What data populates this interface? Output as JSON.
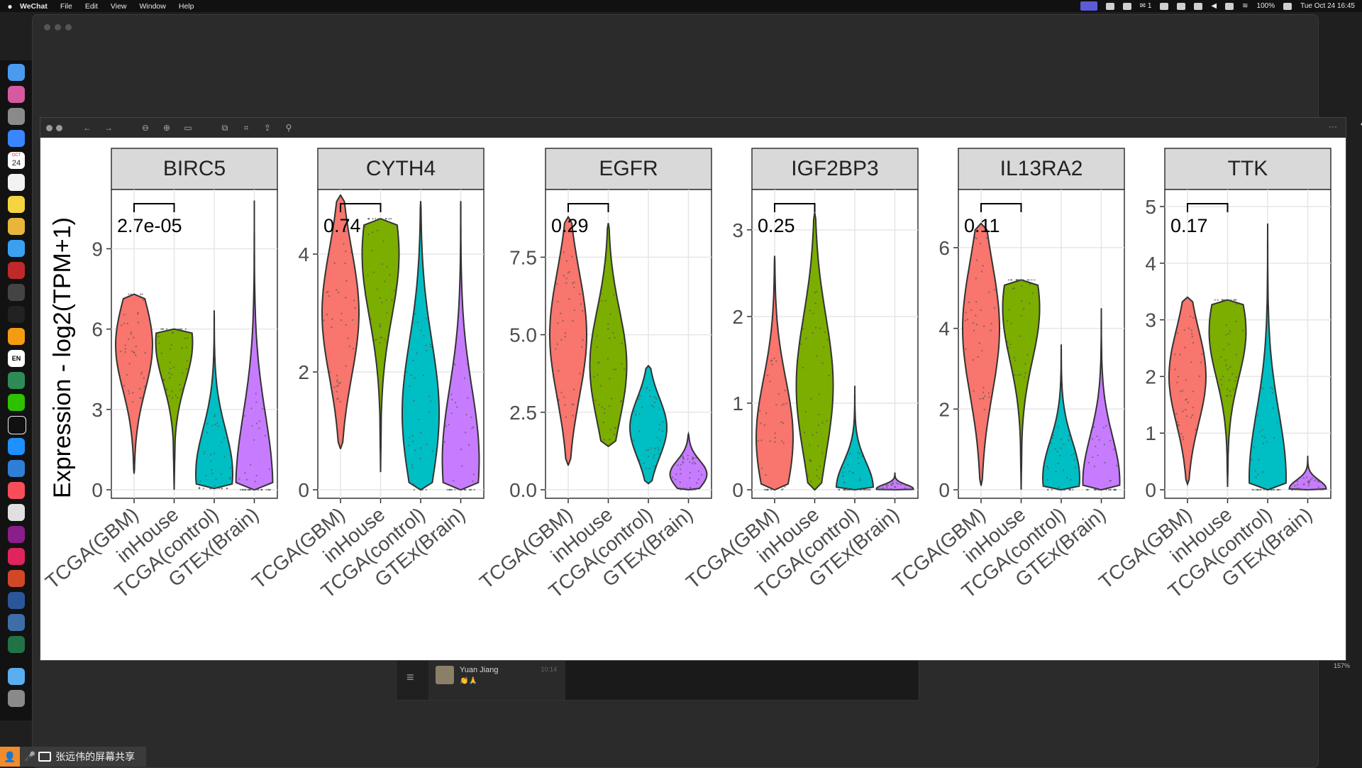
{
  "menubar": {
    "apple": "",
    "items": [
      "WeChat",
      "File",
      "Edit",
      "View",
      "Window",
      "Help"
    ],
    "status": {
      "wechat_count": "1",
      "battery": "100%",
      "datetime": "Tue Oct 24  16:45"
    }
  },
  "dock": {
    "calendar_month": "OCT",
    "calendar_day": "24",
    "lang": "EN"
  },
  "chat": {
    "name": "Yuan Jiang",
    "preview": "👏🙏",
    "time": "10:14"
  },
  "viewer": {
    "zoom": "157%"
  },
  "share_bar": {
    "label": "张远伟的屏幕共享"
  },
  "colors": {
    "TCGA(GBM)": "#F8766D",
    "inHouse": "#7CAE00",
    "TCGA(control)": "#00BFC4",
    "GTEx(Brain)": "#C77CFF",
    "strip_bg": "#D9D9D9"
  },
  "chart_data": {
    "type": "violin",
    "ylabel": "Expression - log2(TPM+1)",
    "categories": [
      "TCGA(GBM)",
      "inHouse",
      "TCGA(control)",
      "GTEx(Brain)"
    ],
    "facets": [
      {
        "gene": "BIRC5",
        "ylim": [
          0,
          11
        ],
        "ticks": [
          "0",
          "3",
          "6",
          "9"
        ],
        "tick_values": [
          0,
          3,
          6,
          9
        ],
        "pvalue": "2.7e-05",
        "violins": [
          {
            "group": "TCGA(GBM)",
            "min": 0.6,
            "max": 7.3,
            "mode": 5.4
          },
          {
            "group": "inHouse",
            "min": 0,
            "max": 6.0,
            "mode": 5.5
          },
          {
            "group": "TCGA(control)",
            "min": 0.05,
            "max": 6.7,
            "mode": 0.6
          },
          {
            "group": "GTEx(Brain)",
            "min": 0,
            "max": 10.8,
            "mode": 0.1
          }
        ]
      },
      {
        "gene": "CYTH4",
        "ylim": [
          0,
          5
        ],
        "ticks": [
          "0",
          "2",
          "4"
        ],
        "tick_values": [
          0,
          2,
          4
        ],
        "pvalue": "0.74",
        "violins": [
          {
            "group": "TCGA(GBM)",
            "min": 0.7,
            "max": 5.0,
            "mode": 3.0
          },
          {
            "group": "inHouse",
            "min": 0.3,
            "max": 4.6,
            "mode": 4.0
          },
          {
            "group": "TCGA(control)",
            "min": 0.0,
            "max": 4.9,
            "mode": 1.3
          },
          {
            "group": "GTEx(Brain)",
            "min": 0.0,
            "max": 4.9,
            "mode": 0.5
          }
        ]
      },
      {
        "gene": "EGFR",
        "ylim": [
          0,
          9.5
        ],
        "ticks": [
          "0.0",
          "2.5",
          "5.0",
          "7.5"
        ],
        "tick_values": [
          0,
          2.5,
          5.0,
          7.5
        ],
        "pvalue": "0.29",
        "violins": [
          {
            "group": "TCGA(GBM)",
            "min": 0.8,
            "max": 8.8,
            "mode": 5.0
          },
          {
            "group": "inHouse",
            "min": 1.4,
            "max": 8.6,
            "mode": 4.0
          },
          {
            "group": "TCGA(control)",
            "min": 0.2,
            "max": 4.0,
            "mode": 2.0
          },
          {
            "group": "GTEx(Brain)",
            "min": 0.0,
            "max": 1.8,
            "mode": 0.5
          }
        ]
      },
      {
        "gene": "IGF2BP3",
        "ylim": [
          0,
          3.4
        ],
        "ticks": [
          "0",
          "1",
          "2",
          "3"
        ],
        "tick_values": [
          0,
          1,
          2,
          3
        ],
        "pvalue": "0.25",
        "violins": [
          {
            "group": "TCGA(GBM)",
            "min": 0.0,
            "max": 2.7,
            "mode": 0.6
          },
          {
            "group": "inHouse",
            "min": 0.0,
            "max": 3.2,
            "mode": 1.2
          },
          {
            "group": "TCGA(control)",
            "min": 0.0,
            "max": 1.2,
            "mode": 0.02
          },
          {
            "group": "GTEx(Brain)",
            "min": 0.0,
            "max": 0.2,
            "mode": 0.01
          }
        ]
      },
      {
        "gene": "IL13RA2",
        "ylim": [
          0,
          7.3
        ],
        "ticks": [
          "0",
          "2",
          "4",
          "6"
        ],
        "tick_values": [
          0,
          2,
          4,
          6
        ],
        "pvalue": "0.11",
        "violins": [
          {
            "group": "TCGA(GBM)",
            "min": 0.1,
            "max": 6.6,
            "mode": 4.0
          },
          {
            "group": "inHouse",
            "min": 0.0,
            "max": 5.2,
            "mode": 4.5
          },
          {
            "group": "TCGA(control)",
            "min": 0.0,
            "max": 3.6,
            "mode": 0.3
          },
          {
            "group": "GTEx(Brain)",
            "min": 0.0,
            "max": 4.5,
            "mode": 0.2
          }
        ]
      },
      {
        "gene": "TTK",
        "ylim": [
          0,
          5.2
        ],
        "ticks": [
          "0",
          "1",
          "2",
          "3",
          "4",
          "5"
        ],
        "tick_values": [
          0,
          1,
          2,
          3,
          4,
          5
        ],
        "pvalue": "0.17",
        "violins": [
          {
            "group": "TCGA(GBM)",
            "min": 0.1,
            "max": 3.4,
            "mode": 2.0
          },
          {
            "group": "inHouse",
            "min": 0.05,
            "max": 3.35,
            "mode": 2.8
          },
          {
            "group": "TCGA(control)",
            "min": 0.0,
            "max": 4.7,
            "mode": 0.2
          },
          {
            "group": "GTEx(Brain)",
            "min": 0.0,
            "max": 0.6,
            "mode": 0.02
          }
        ]
      }
    ]
  }
}
